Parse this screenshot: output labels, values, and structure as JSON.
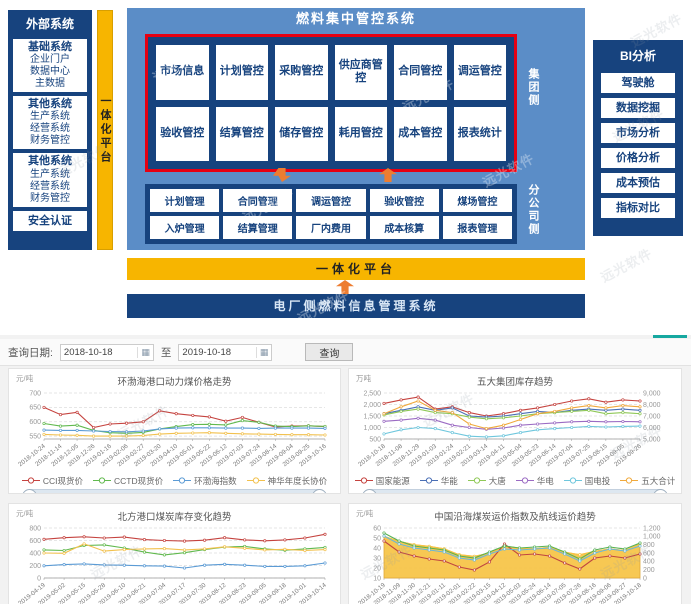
{
  "watermark": {
    "text": "远光软件"
  },
  "diagram": {
    "external": {
      "title": "外部系统",
      "groups": [
        {
          "title": "基础系统",
          "items": [
            "企业门户",
            "数据中心",
            "主数据"
          ]
        },
        {
          "title": "其他系统",
          "items": [
            "生产系统",
            "经营系统",
            "财务管控"
          ]
        },
        {
          "title": "其他系统",
          "items": [
            "生产系统",
            "经营系统",
            "财务管控"
          ]
        }
      ],
      "footer": "安全认证"
    },
    "integration_platform_vertical": "一体化平台",
    "main": {
      "title": "燃料集中管控系统",
      "group_side_label": "集团侧",
      "group_modules": [
        "市场信息",
        "计划管控",
        "采购管控",
        "供应商管控",
        "合同管控",
        "调运管控",
        "验收管控",
        "结算管控",
        "储存管控",
        "耗用管控",
        "成本管控",
        "报表统计"
      ],
      "branch_side_label": "分公司侧",
      "branch_modules": [
        "计划管理",
        "合同管理",
        "调运管控",
        "验收管控",
        "煤场管控",
        "入炉管理",
        "结算管理",
        "厂内费用",
        "成本核算",
        "报表管理"
      ]
    },
    "bi": {
      "title": "BI分析",
      "items": [
        "驾驶舱",
        "数据挖掘",
        "市场分析",
        "价格分析",
        "成本预估",
        "指标对比"
      ]
    },
    "integration_platform_horizontal": "一体化平台",
    "plant_system_bar": "电厂侧燃料信息管理系统",
    "colors": {
      "navy": "#17437e",
      "panel_blue": "#5b8dc7",
      "yellow": "#f7b500",
      "red_border": "#e60012",
      "arrow_orange": "#ed7d31"
    }
  },
  "query": {
    "label": "查询日期:",
    "start_date": "2018-10-18",
    "to_label": "至",
    "end_date": "2019-10-18",
    "button_label": "查询",
    "calendar_icon": "▦"
  },
  "chart_data": [
    {
      "type": "line",
      "title": "环渤海港口动力煤价格走势",
      "y_unit": "元/吨",
      "ylim": [
        540,
        700
      ],
      "ytick_values": [
        550,
        600,
        650,
        700
      ],
      "ytick_labels": [
        "550",
        "600",
        "650",
        "700"
      ],
      "x": [
        "2018-10-24",
        "2018-11-14",
        "2018-12-05",
        "2018-12-26",
        "2019-01-16",
        "2019-02-06",
        "2019-02-27",
        "2019-03-20",
        "2019-04-10",
        "2019-05-01",
        "2019-05-22",
        "2019-06-12",
        "2019-07-03",
        "2019-07-24",
        "2019-08-14",
        "2019-09-04",
        "2019-09-25",
        "2019-10-16"
      ],
      "legend_position": "bottom",
      "datazoom": true,
      "series": [
        {
          "name": "CCI现货价",
          "color": "#c5433f",
          "values": [
            650,
            625,
            633,
            580,
            592,
            595,
            600,
            638,
            628,
            622,
            617,
            602,
            615,
            598,
            582,
            585,
            586,
            583
          ]
        },
        {
          "name": "CCTD现货价",
          "color": "#61b94e",
          "values": [
            594,
            585,
            588,
            570,
            562,
            560,
            563,
            575,
            583,
            590,
            591,
            589,
            604,
            598,
            585,
            583,
            586,
            584
          ]
        },
        {
          "name": "环渤海指数",
          "color": "#5b9bd5",
          "values": [
            571,
            570,
            570,
            568,
            566,
            565,
            568,
            575,
            578,
            579,
            579,
            578,
            578,
            577,
            578,
            578,
            578,
            577
          ]
        },
        {
          "name": "神华年度长协价",
          "color": "#f2c14e",
          "values": [
            556,
            554,
            553,
            550,
            550,
            550,
            552,
            557,
            560,
            561,
            562,
            560,
            558,
            557,
            556,
            555,
            555,
            554
          ]
        }
      ]
    },
    {
      "type": "line",
      "title": "五大集团库存趋势",
      "y_unit": "万吨",
      "ylim": [
        500,
        2500
      ],
      "ytick_values": [
        500,
        1000,
        1500,
        2000,
        2500
      ],
      "ytick_labels": [
        "500",
        "1,000",
        "1,500",
        "2,000",
        "2,500"
      ],
      "y2lim": [
        5000,
        9000
      ],
      "y2tick_values": [
        5000,
        6000,
        7000,
        8000,
        9000
      ],
      "y2tick_labels": [
        "5,000",
        "6,000",
        "7,000",
        "8,000",
        "9,000"
      ],
      "x": [
        "2018-10-18",
        "2018-11-08",
        "2018-11-29",
        "2019-01-03",
        "2019-01-24",
        "2019-02-21",
        "2019-03-14",
        "2019-04-11",
        "2019-05-04",
        "2019-05-23",
        "2019-06-14",
        "2019-07-04",
        "2019-07-25",
        "2019-08-15",
        "2019-09-05",
        "2019-09-26"
      ],
      "legend_position": "bottom",
      "datazoom": true,
      "series": [
        {
          "name": "国家能源",
          "color": "#c5433f",
          "values": [
            2050,
            2200,
            2320,
            1800,
            1900,
            1650,
            1500,
            1600,
            1750,
            1850,
            2000,
            2150,
            2250,
            2100,
            2200,
            2150
          ]
        },
        {
          "name": "华能",
          "color": "#4a6fb5",
          "values": [
            1600,
            1750,
            1900,
            1750,
            1850,
            1500,
            1450,
            1500,
            1600,
            1700,
            1650,
            1750,
            1800,
            1750,
            1800,
            1750
          ]
        },
        {
          "name": "大唐",
          "color": "#8fc857",
          "values": [
            1550,
            1700,
            1800,
            1650,
            1600,
            1450,
            1380,
            1420,
            1500,
            1600,
            1650,
            1700,
            1750,
            1600,
            1650,
            1600
          ]
        },
        {
          "name": "华电",
          "color": "#9b6bc3",
          "values": [
            1270,
            1320,
            1400,
            1320,
            1100,
            1000,
            920,
            980,
            1100,
            1150,
            1200,
            1250,
            1270,
            1250,
            1260,
            1250
          ]
        },
        {
          "name": "国电投",
          "color": "#6fc7dd",
          "values": [
            720,
            900,
            1000,
            950,
            780,
            620,
            590,
            640,
            780,
            900,
            950,
            1000,
            1050,
            1020,
            1050,
            1060
          ]
        },
        {
          "name": "五大合计",
          "color": "#f0a93c",
          "axis": "right",
          "values": [
            7200,
            7800,
            8300,
            7500,
            7300,
            6300,
            5900,
            6200,
            6700,
            7200,
            7400,
            7700,
            7900,
            7700,
            7900,
            7800
          ]
        }
      ]
    },
    {
      "type": "line",
      "title": "北方港口煤炭库存变化趋势",
      "y_unit": "元/吨",
      "ylim": [
        0,
        800
      ],
      "ytick_values": [
        0,
        200,
        400,
        600,
        800
      ],
      "ytick_labels": [
        "0",
        "200",
        "400",
        "600",
        "800"
      ],
      "x": [
        "2019-04-19",
        "2019-05-02",
        "2019-05-15",
        "2019-05-28",
        "2019-06-10",
        "2019-06-21",
        "2019-07-04",
        "2019-07-17",
        "2019-07-30",
        "2019-08-12",
        "2019-08-23",
        "2019-09-05",
        "2019-09-18",
        "2019-10-01",
        "2019-10-14"
      ],
      "legend_position": "none",
      "datazoom": false,
      "series": [
        {
          "name": "",
          "color": "#c5433f",
          "values": [
            620,
            645,
            660,
            640,
            655,
            615,
            600,
            590,
            605,
            645,
            610,
            595,
            610,
            640,
            700
          ]
        },
        {
          "name": "",
          "color": "#61b94e",
          "values": [
            450,
            440,
            520,
            530,
            480,
            415,
            370,
            405,
            455,
            495,
            505,
            465,
            445,
            465,
            490
          ]
        },
        {
          "name": "",
          "color": "#f2c14e",
          "values": [
            400,
            395,
            545,
            430,
            455,
            465,
            470,
            450,
            465,
            500,
            475,
            450,
            460,
            440,
            455
          ]
        },
        {
          "name": "",
          "color": "#5b9bd5",
          "values": [
            195,
            215,
            225,
            210,
            205,
            195,
            190,
            160,
            205,
            220,
            205,
            185,
            185,
            195,
            240
          ]
        }
      ]
    },
    {
      "type": "area",
      "title": "中国沿海煤炭运价指数及航线运价趋势",
      "y_unit": "元/吨",
      "ylim": [
        10,
        60
      ],
      "ytick_values": [
        10,
        20,
        30,
        40,
        50,
        60
      ],
      "ytick_labels": [
        "10",
        "20",
        "30",
        "40",
        "50",
        "60"
      ],
      "y2lim": [
        0,
        1200
      ],
      "y2tick_values": [
        0,
        200,
        400,
        600,
        800,
        1000,
        1200
      ],
      "y2tick_labels": [
        "0",
        "200",
        "400",
        "600",
        "800",
        "1,000",
        "1,200"
      ],
      "x": [
        "2018-10-19",
        "2018-11-09",
        "2018-11-30",
        "2018-12-21",
        "2019-01-11",
        "2019-02-01",
        "2019-02-22",
        "2019-03-15",
        "2019-04-12",
        "2019-05-03",
        "2019-05-24",
        "2019-06-14",
        "2019-07-05",
        "2019-07-26",
        "2019-08-16",
        "2019-09-06",
        "2019-09-27",
        "2019-10-18"
      ],
      "legend_position": "none",
      "datazoom": false,
      "series": [
        {
          "name": "",
          "color": "#f6c344",
          "axis": "right",
          "area": true,
          "values": [
            1000,
            880,
            800,
            760,
            700,
            560,
            520,
            600,
            760,
            720,
            700,
            740,
            620,
            560,
            640,
            700,
            660,
            820
          ]
        },
        {
          "name": "",
          "color": "#c04540",
          "values": [
            47,
            36,
            32,
            29,
            27,
            21,
            18,
            26,
            44,
            33,
            34,
            32,
            25,
            19,
            30,
            32,
            30,
            34
          ]
        },
        {
          "name": "",
          "color": "#57b153",
          "values": [
            55,
            47,
            42,
            40,
            38,
            32,
            30,
            36,
            42,
            40,
            41,
            42,
            36,
            29,
            38,
            41,
            39,
            45
          ]
        },
        {
          "name": "",
          "color": "#6ab7d8",
          "values": [
            52,
            44,
            40,
            38,
            36,
            30,
            28,
            34,
            39,
            38,
            39,
            40,
            34,
            27,
            35,
            39,
            37,
            42
          ]
        }
      ]
    }
  ]
}
